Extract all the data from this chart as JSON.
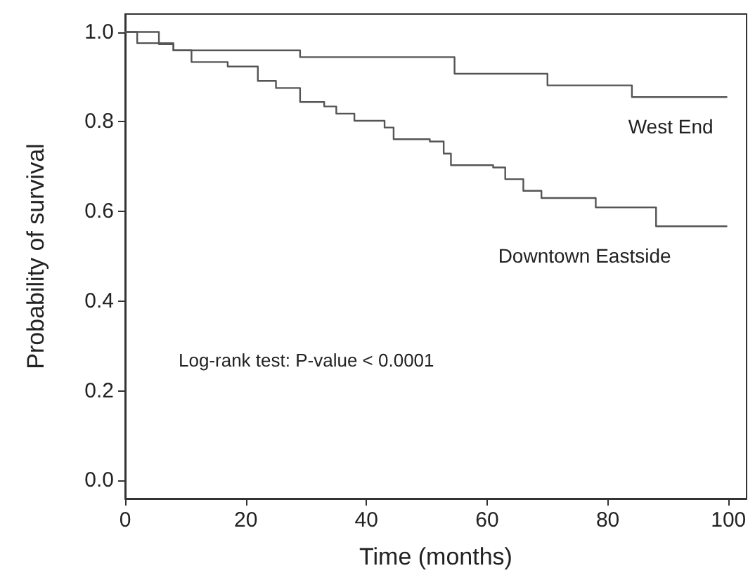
{
  "chart_data": {
    "type": "step",
    "xlabel": "Time (months)",
    "ylabel": "Probability of survival",
    "xlim": [
      0,
      103
    ],
    "ylim": [
      -0.04,
      1.04
    ],
    "xticks": [
      0,
      20,
      40,
      60,
      80,
      100
    ],
    "yticks": [
      {
        "value": 0,
        "label": "0.0"
      },
      0.2,
      0.4,
      0.6,
      0.8,
      {
        "value": 1,
        "label": "1.0"
      }
    ],
    "legend": false,
    "annotations": [
      "Log-rank test: P-value < 0.0001"
    ],
    "series": [
      {
        "name": "West End",
        "color": "#555555",
        "x": [
          0,
          5.6,
          8,
          29,
          51.5,
          54.6,
          67.8,
          70,
          84,
          99.8
        ],
        "values": [
          1,
          0.973,
          0.959,
          0.944,
          0.944,
          0.907,
          0.907,
          0.881,
          0.855,
          0.855
        ]
      },
      {
        "name": "Downtown Eastside",
        "color": "#555555",
        "x": [
          0,
          2,
          8,
          11,
          17,
          22,
          25,
          29,
          33,
          35,
          38,
          43,
          44.5,
          50.5,
          52.8,
          54,
          61,
          63,
          66,
          69,
          78,
          88,
          99.8
        ],
        "values": [
          1,
          0.975,
          0.959,
          0.933,
          0.923,
          0.891,
          0.875,
          0.844,
          0.834,
          0.818,
          0.802,
          0.787,
          0.761,
          0.756,
          0.729,
          0.703,
          0.698,
          0.672,
          0.646,
          0.63,
          0.609,
          0.567,
          0.567
        ]
      }
    ]
  }
}
